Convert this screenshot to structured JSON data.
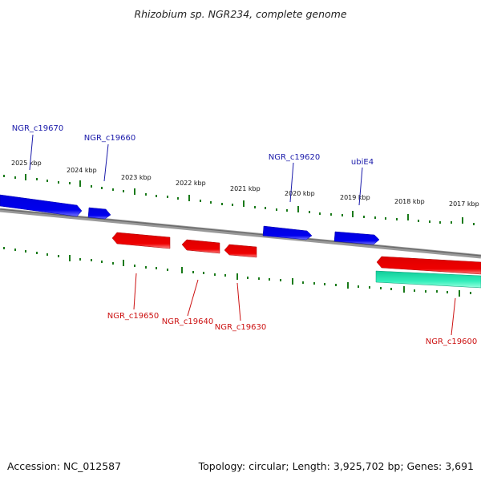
{
  "title": "Rhizobium sp. NGR234, complete genome",
  "footer": {
    "accession": "Accession: NC_012587",
    "summary": "Topology: circular; Length: 3,925,702 bp; Genes: 3,691"
  },
  "colors": {
    "forward_gene": "#0000ee",
    "reverse_gene": "#ee0000",
    "rna_gene": "#22ddaa",
    "backbone": "#888888",
    "tick": "#1a7a1a",
    "forward_label": "#1a1aaa",
    "reverse_label": "#cc1111"
  },
  "ruler": {
    "labels": [
      "2025 kbp",
      "2024 kbp",
      "2023 kbp",
      "2022 kbp",
      "2021 kbp",
      "2020 kbp",
      "2019 kbp",
      "2018 kbp",
      "2017 kbp"
    ]
  },
  "genes_forward": [
    {
      "label": "NGR_c19670"
    },
    {
      "label": "NGR_c19660"
    },
    {
      "label": "NGR_c19620"
    },
    {
      "label": "ubiE4"
    }
  ],
  "genes_reverse": [
    {
      "label": "NGR_c19650"
    },
    {
      "label": "NGR_c19640"
    },
    {
      "label": "NGR_c19630"
    },
    {
      "label": "NGR_c19600"
    }
  ]
}
